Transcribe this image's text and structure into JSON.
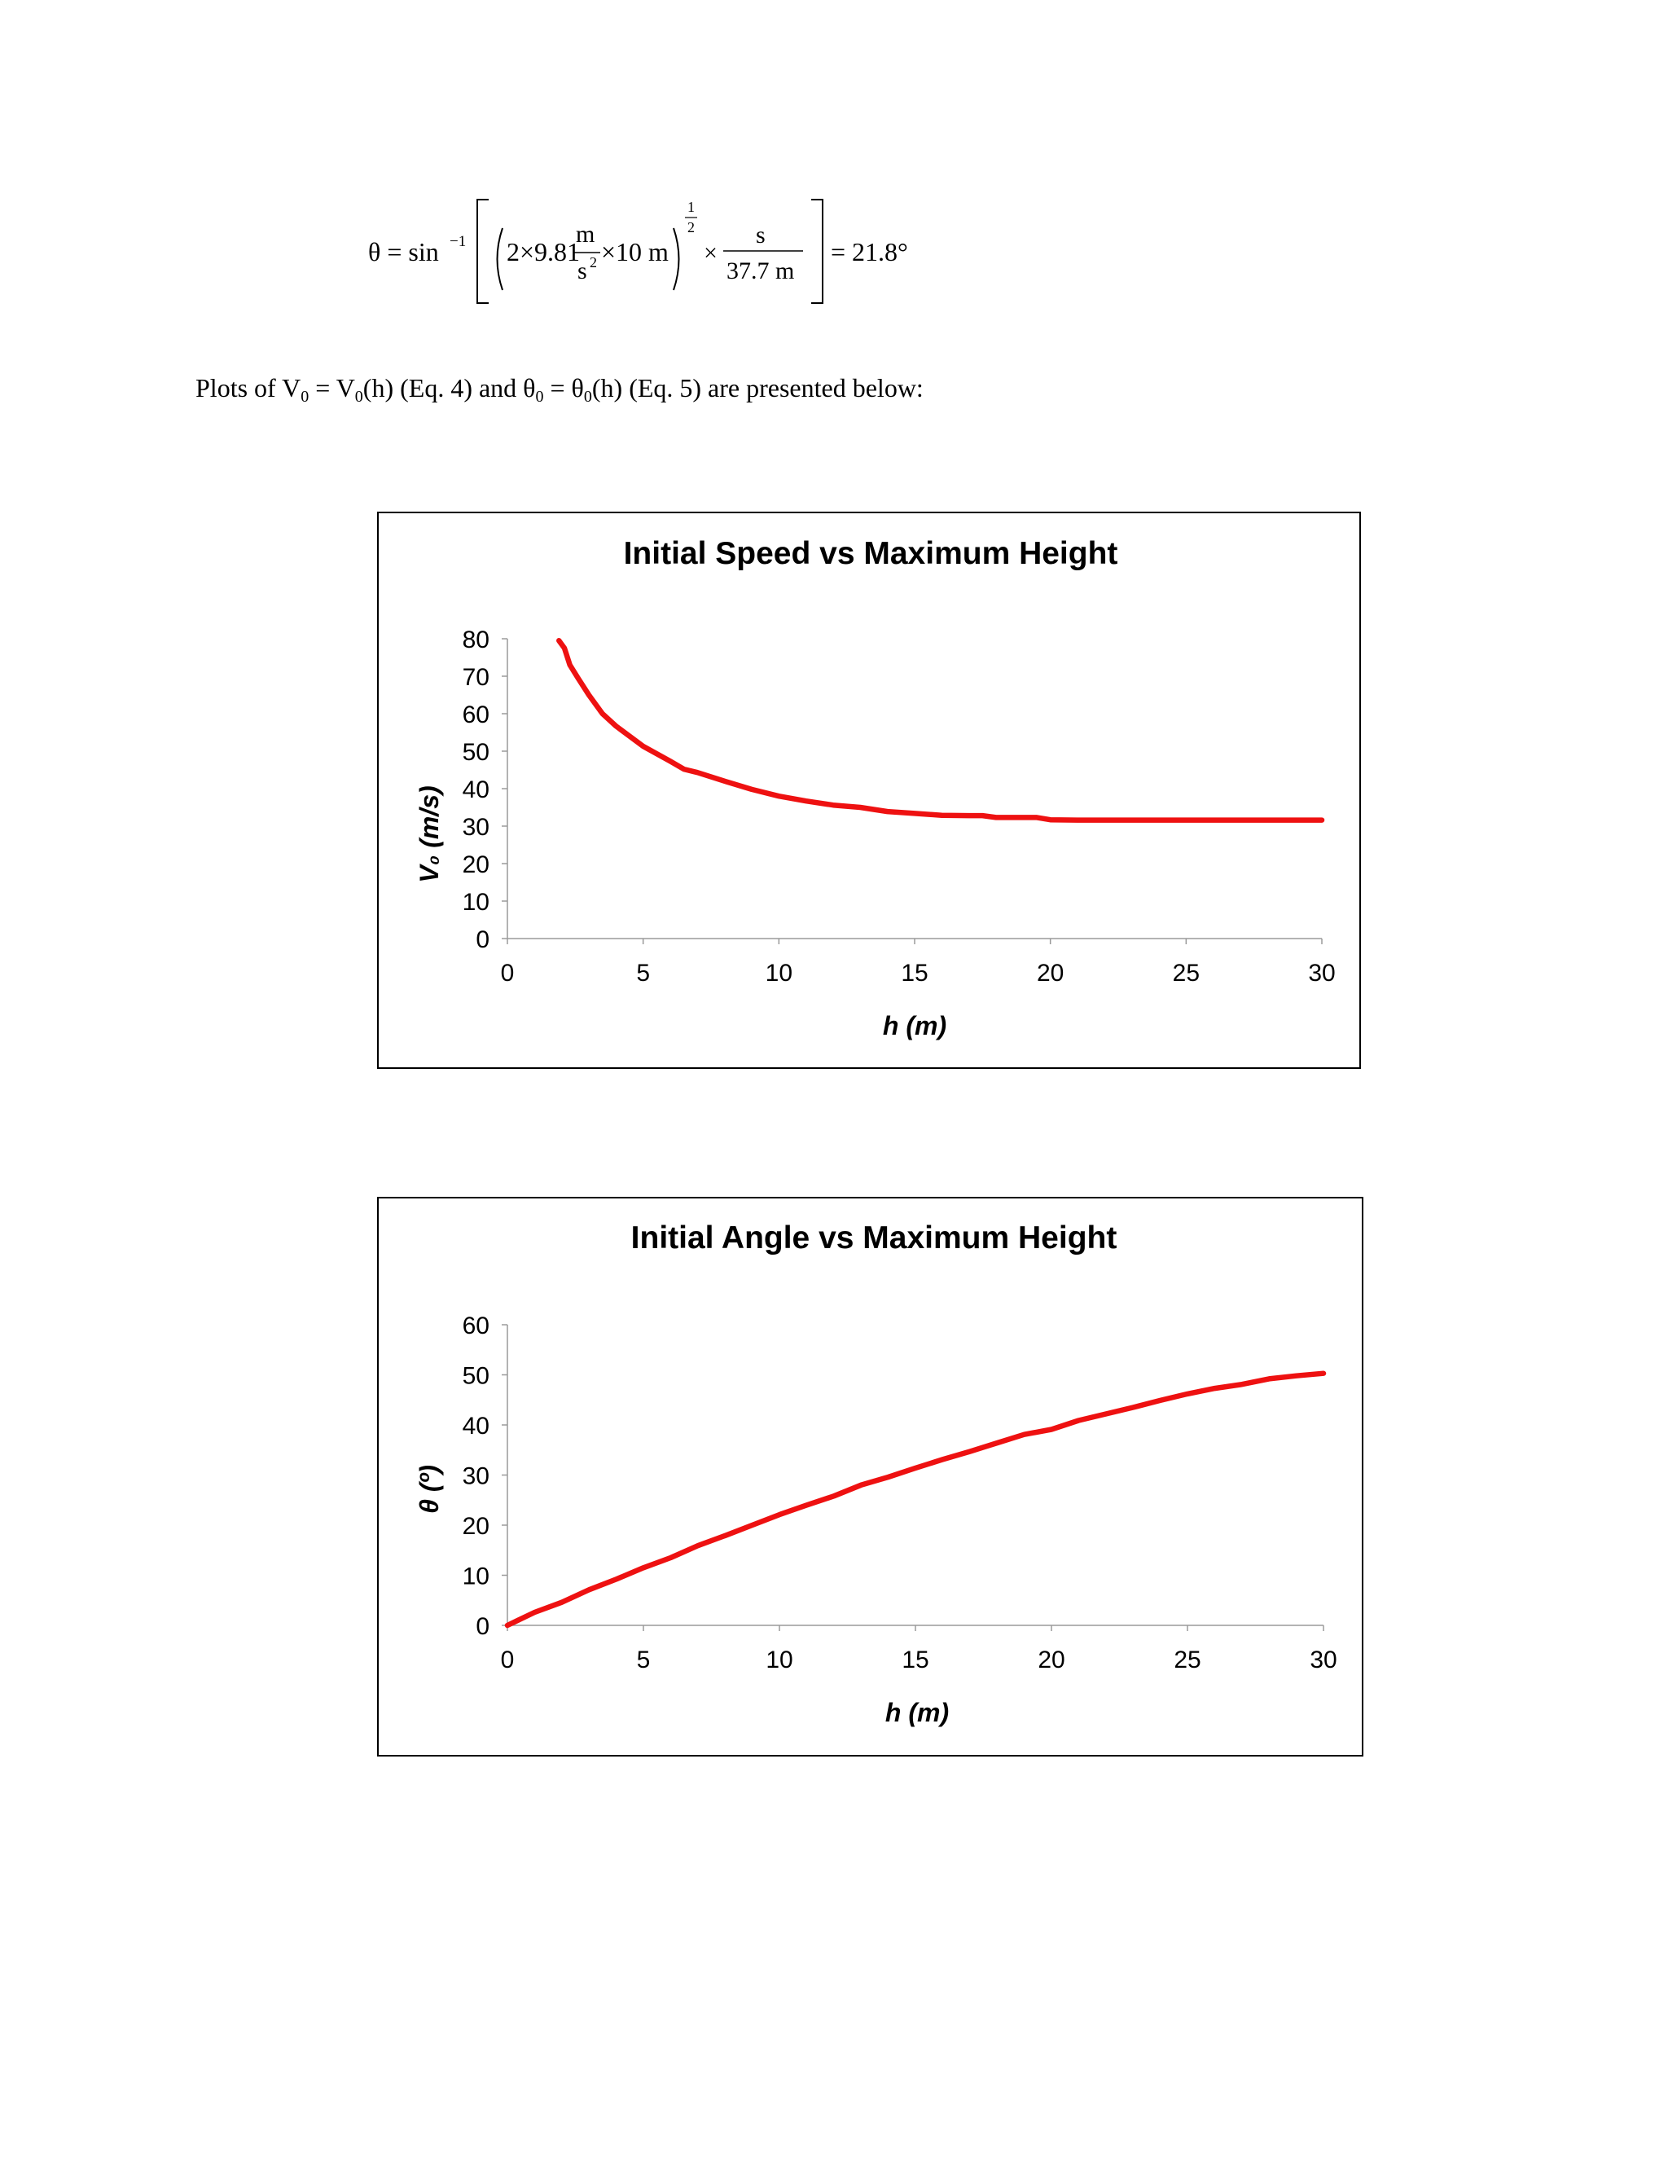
{
  "equation": {
    "lhs": "θ = sin",
    "inverse": "−1",
    "coef": "2×9.81",
    "frac_num": "m",
    "frac_den": "s",
    "den_exp": "2",
    "after": "×10 m",
    "exp_num": "1",
    "exp_den": "2",
    "times": "×",
    "frac2_num": "s",
    "frac2_den": "37.7 m",
    "result": "= 21.8°"
  },
  "intro": {
    "part1": "Plots of V",
    "sub1": "0",
    "part2": " = V",
    "sub2": "0",
    "part3": "(h) (Eq. 4) and θ",
    "sub3": "0",
    "part4": " =  θ",
    "sub4": "0",
    "part5": "(h) (Eq. 5) are presented below:"
  },
  "colors": {
    "series": "#ee1111",
    "axis": "#9a9a9a"
  },
  "chart_data": [
    {
      "type": "line",
      "title": "Initial Speed vs Maximum Height",
      "xlabel": "h (m)",
      "ylabel": "V₀ (m/s)",
      "xlim": [
        0,
        30
      ],
      "ylim": [
        0,
        80
      ],
      "xticks": [
        0,
        5,
        10,
        15,
        20,
        25,
        30
      ],
      "yticks": [
        0,
        10,
        20,
        30,
        40,
        50,
        60,
        70,
        80
      ],
      "grid": false,
      "series": [
        {
          "x": [
            1.9,
            2.1,
            2.3,
            2.6,
            3,
            3.5,
            4,
            5,
            6,
            6.5,
            7,
            8,
            9,
            10,
            11,
            12,
            13,
            14,
            15,
            16,
            17,
            17.5,
            18,
            19,
            19.5,
            20,
            21,
            22,
            25,
            28,
            30
          ],
          "y": [
            79.5,
            77.5,
            73,
            69.5,
            65,
            60,
            56.7,
            51.3,
            47.3,
            45.2,
            44.3,
            42,
            39.8,
            38,
            36.7,
            35.6,
            35,
            33.9,
            33.4,
            32.9,
            32.8,
            32.8,
            32.3,
            32.3,
            32.3,
            31.7,
            31.6,
            31.6,
            31.6,
            31.6,
            31.6
          ]
        }
      ]
    },
    {
      "type": "line",
      "title": "Initial Angle vs Maximum Height",
      "xlabel": "h (m)",
      "ylabel": "θ (º)",
      "xlim": [
        0,
        30
      ],
      "ylim": [
        0,
        60
      ],
      "xticks": [
        0,
        5,
        10,
        15,
        20,
        25,
        30
      ],
      "yticks": [
        0,
        10,
        20,
        30,
        40,
        50,
        60
      ],
      "grid": false,
      "series": [
        {
          "x": [
            0,
            1,
            2,
            3,
            4,
            5,
            6,
            7,
            8,
            9,
            10,
            11,
            12,
            13,
            14,
            15,
            16,
            17,
            18,
            19,
            20,
            21,
            22,
            23,
            24,
            25,
            26,
            27,
            28,
            29,
            30
          ],
          "y": [
            0,
            2.6,
            4.6,
            7.1,
            9.2,
            11.5,
            13.5,
            15.9,
            17.9,
            20,
            22.1,
            24,
            25.8,
            28,
            29.6,
            31.4,
            33.1,
            34.7,
            36.4,
            38.1,
            39.1,
            40.9,
            42.2,
            43.5,
            44.9,
            46.2,
            47.3,
            48.1,
            49.2,
            49.8,
            50.3
          ]
        }
      ]
    }
  ]
}
